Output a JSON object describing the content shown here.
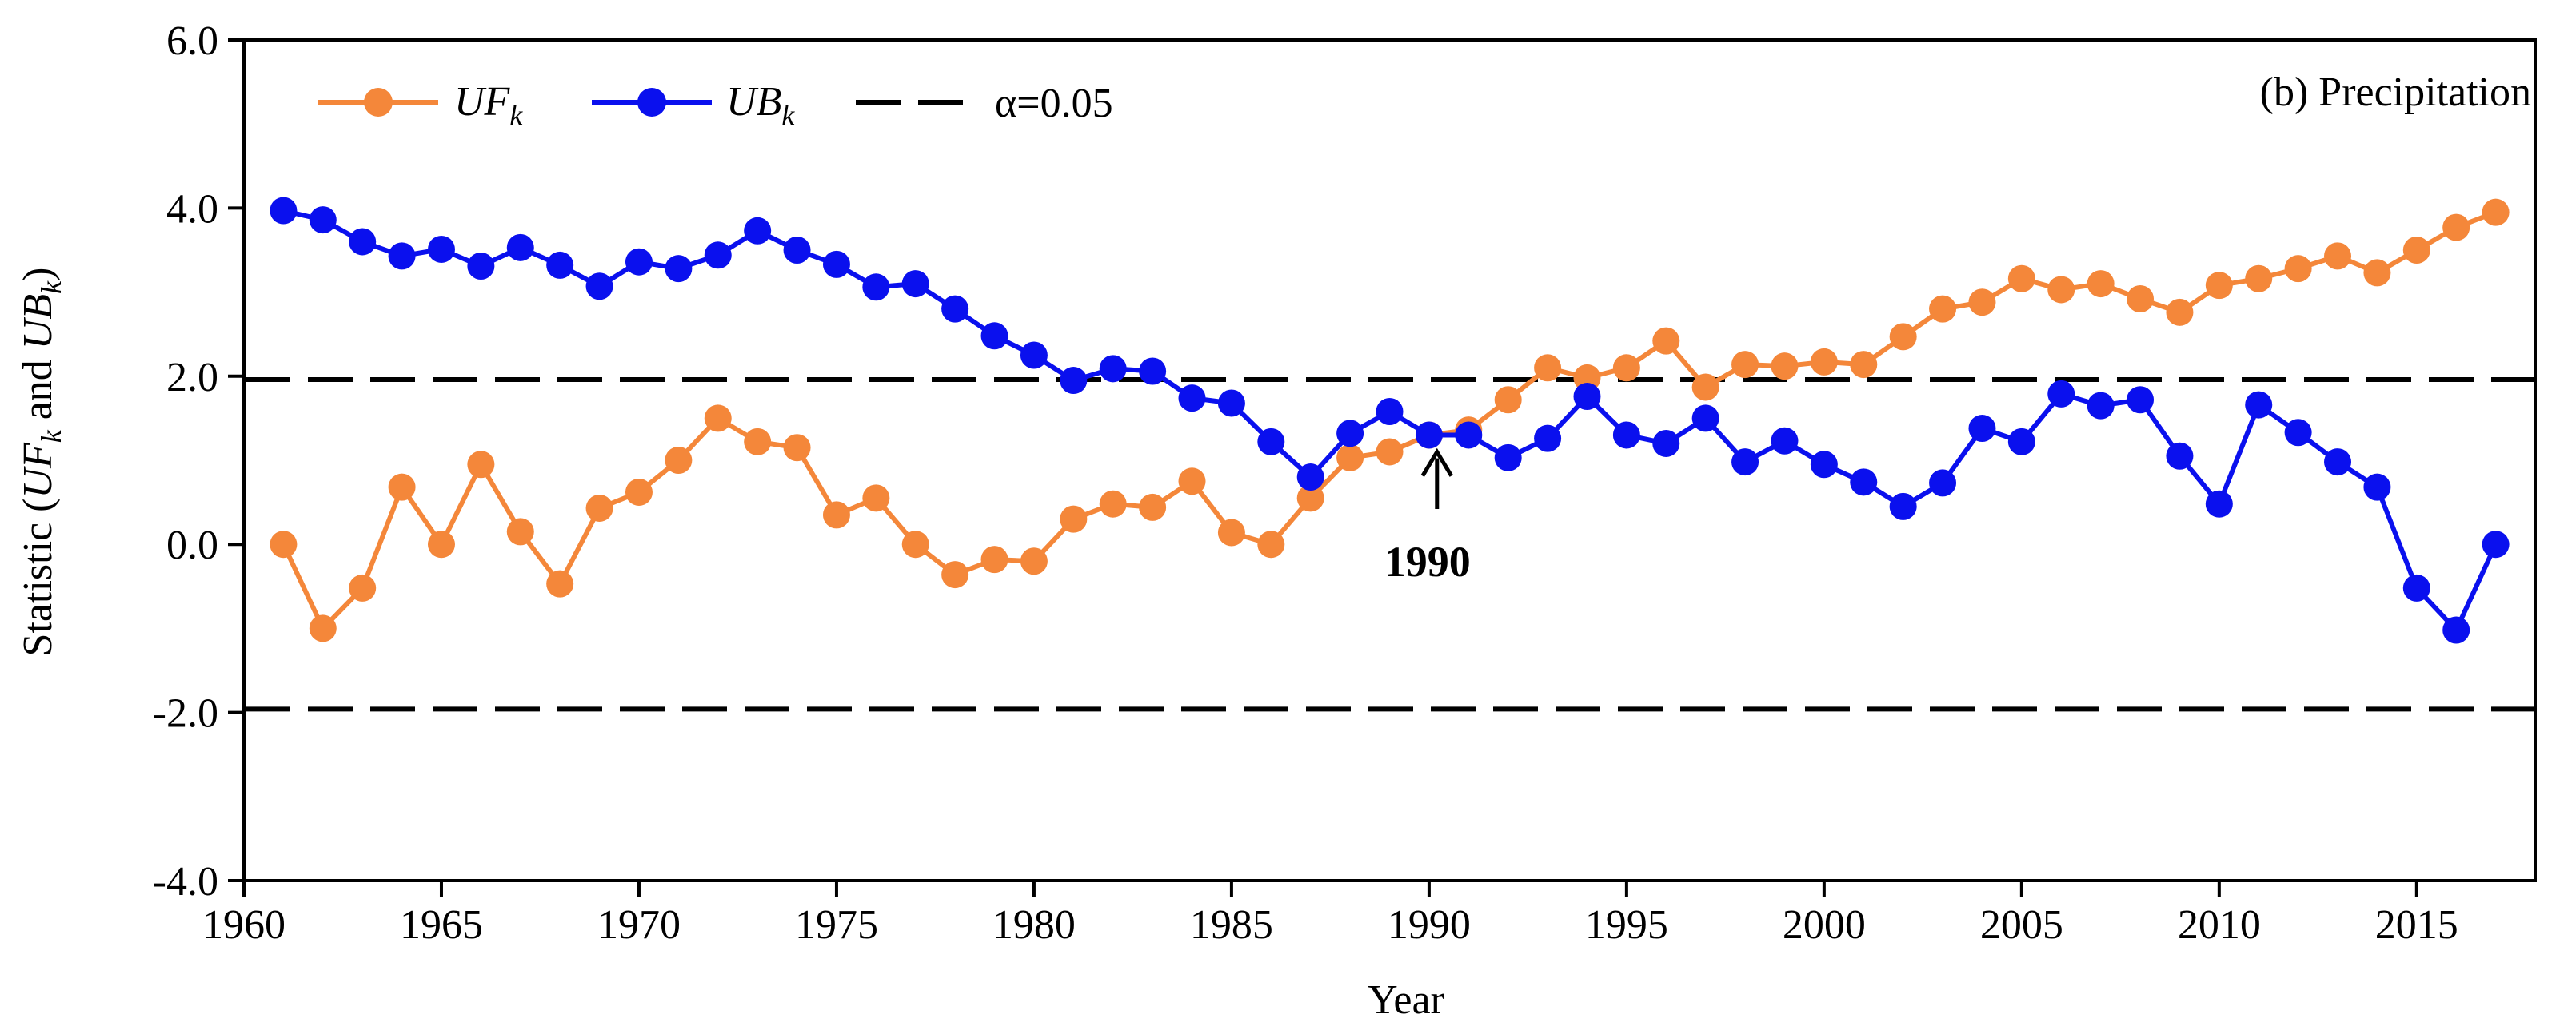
{
  "chart_data": {
    "type": "line",
    "title": "(b) Precipitation",
    "xlabel": "Year",
    "ylabel": {
      "text": "Statistic (UFk and UBk)",
      "prefix": "Statistic (",
      "uf_main": "UF",
      "uf_sub": "k",
      "mid": " and ",
      "ub_main": "UB",
      "ub_sub": "k",
      "suffix": ")"
    },
    "xlim": [
      1960,
      2018
    ],
    "ylim": [
      -4.0,
      6.0
    ],
    "x_ticks": [
      1960,
      1965,
      1970,
      1975,
      1980,
      1985,
      1990,
      1995,
      2000,
      2005,
      2010,
      2015
    ],
    "x_tick_labels": [
      "1960",
      "1965",
      "1970",
      "1975",
      "1980",
      "1985",
      "1990",
      "1995",
      "2000",
      "2005",
      "2010",
      "2015"
    ],
    "y_ticks": [
      -4,
      -2,
      0,
      2,
      4,
      6
    ],
    "y_tick_labels": [
      "-4.0",
      "-2.0",
      "0.0",
      "2.0",
      "4.0",
      "6.0"
    ],
    "legend": {
      "placement": "top-left",
      "entries": [
        {
          "key": "uf",
          "main": "UF",
          "sub": "k"
        },
        {
          "key": "ub",
          "main": "UB",
          "sub": "k"
        },
        {
          "key": "alpha",
          "label": "α=0.05"
        }
      ]
    },
    "x": [
      1961,
      1962,
      1963,
      1964,
      1965,
      1966,
      1967,
      1968,
      1969,
      1970,
      1971,
      1972,
      1973,
      1974,
      1975,
      1976,
      1977,
      1978,
      1979,
      1980,
      1981,
      1982,
      1983,
      1984,
      1985,
      1986,
      1987,
      1988,
      1989,
      1990,
      1991,
      1992,
      1993,
      1994,
      1995,
      1996,
      1997,
      1998,
      1999,
      2000,
      2001,
      2002,
      2003,
      2004,
      2005,
      2006,
      2007,
      2008,
      2009,
      2010,
      2011,
      2012,
      2013,
      2014,
      2015,
      2016,
      2017
    ],
    "series": [
      {
        "name": "UFk",
        "color": "#f4873a",
        "values": [
          0.0,
          -1.0,
          -0.52,
          0.68,
          0.0,
          0.95,
          0.15,
          -0.47,
          0.43,
          0.62,
          1.0,
          1.5,
          1.22,
          1.15,
          0.35,
          0.55,
          0.0,
          -0.36,
          -0.18,
          -0.2,
          0.3,
          0.48,
          0.44,
          0.75,
          0.14,
          0.0,
          0.55,
          1.03,
          1.1,
          1.3,
          1.36,
          1.72,
          2.1,
          1.98,
          2.1,
          2.42,
          1.87,
          2.14,
          2.12,
          2.17,
          2.14,
          2.47,
          2.8,
          2.88,
          3.16,
          3.03,
          3.1,
          2.92,
          2.76,
          3.08,
          3.16,
          3.28,
          3.43,
          3.23,
          3.5,
          3.77,
          3.95
        ]
      },
      {
        "name": "UBk",
        "color": "#0a10ee",
        "values": [
          3.97,
          3.86,
          3.6,
          3.43,
          3.51,
          3.31,
          3.53,
          3.32,
          3.07,
          3.36,
          3.28,
          3.44,
          3.73,
          3.5,
          3.33,
          3.06,
          3.1,
          2.8,
          2.48,
          2.25,
          1.95,
          2.09,
          2.06,
          1.74,
          1.68,
          1.22,
          0.8,
          1.32,
          1.58,
          1.3,
          1.3,
          1.03,
          1.26,
          1.76,
          1.3,
          1.2,
          1.5,
          0.98,
          1.23,
          0.95,
          0.74,
          0.45,
          0.73,
          1.38,
          1.22,
          1.79,
          1.65,
          1.72,
          1.05,
          0.48,
          1.66,
          1.33,
          0.98,
          0.68,
          -0.52,
          -1.02,
          0.0
        ]
      }
    ],
    "thresholds": {
      "name": "α=0.05",
      "color": "#000000",
      "values": [
        1.96,
        -1.96
      ]
    },
    "annotations": [
      {
        "text": "1990",
        "x": 1990.2,
        "y_tip": 1.27,
        "y_base": 0.42,
        "y_label": -0.38
      }
    ]
  }
}
